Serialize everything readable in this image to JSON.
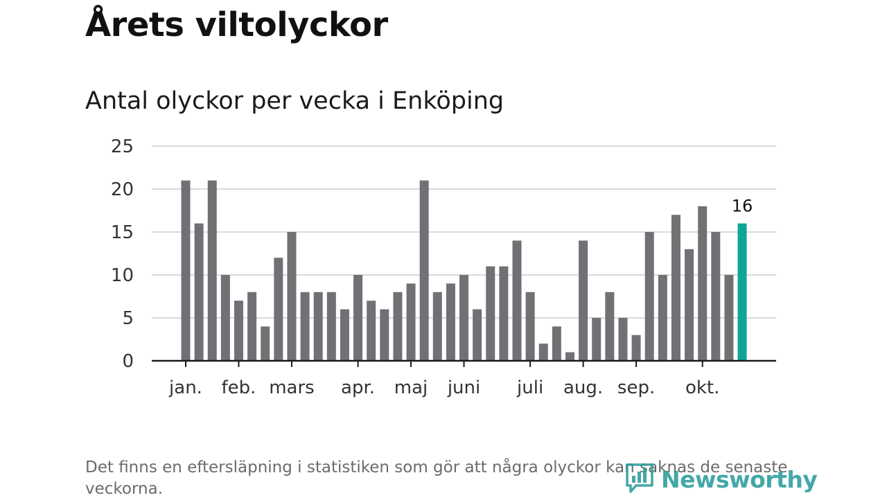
{
  "page": {
    "title": "Årets viltolyckor",
    "footnote": "Det finns en eftersläpning i statistiken som gör att några olyckor kan saknas de senaste veckorna.",
    "brand": "Newsworthy"
  },
  "colors": {
    "bar": "#717075",
    "highlight": "#0ea596",
    "grid": "#d9d9d9",
    "axis": "#1a1a1a",
    "brand": "#2a9d9c"
  },
  "chart_data": {
    "type": "bar",
    "title": "Antal olyckor per vecka i Enköping",
    "xlabel": "",
    "ylabel": "",
    "ylim": [
      0,
      25
    ],
    "yticks": [
      0,
      5,
      10,
      15,
      20,
      25
    ],
    "grid": true,
    "month_labels": [
      {
        "label": "jan.",
        "week": 1
      },
      {
        "label": "feb.",
        "week": 5
      },
      {
        "label": "mars",
        "week": 9
      },
      {
        "label": "apr.",
        "week": 14
      },
      {
        "label": "maj",
        "week": 18
      },
      {
        "label": "juni",
        "week": 22
      },
      {
        "label": "juli",
        "week": 27
      },
      {
        "label": "aug.",
        "week": 31
      },
      {
        "label": "sep.",
        "week": 35
      },
      {
        "label": "okt.",
        "week": 40
      }
    ],
    "weeks": [
      1,
      2,
      3,
      4,
      5,
      6,
      7,
      8,
      9,
      10,
      11,
      12,
      13,
      14,
      15,
      16,
      17,
      18,
      19,
      20,
      21,
      22,
      23,
      24,
      25,
      26,
      27,
      28,
      29,
      30,
      31,
      32,
      33,
      34,
      35,
      36,
      37,
      38,
      39,
      40,
      41,
      42,
      43
    ],
    "values": [
      21,
      16,
      21,
      10,
      7,
      8,
      4,
      12,
      15,
      8,
      8,
      8,
      6,
      10,
      7,
      6,
      8,
      9,
      21,
      8,
      9,
      10,
      6,
      11,
      11,
      14,
      8,
      2,
      4,
      1,
      14,
      5,
      8,
      5,
      3,
      15,
      10,
      17,
      13,
      18,
      15,
      10,
      16
    ],
    "highlight_index": 42,
    "highlight_label": "16"
  }
}
